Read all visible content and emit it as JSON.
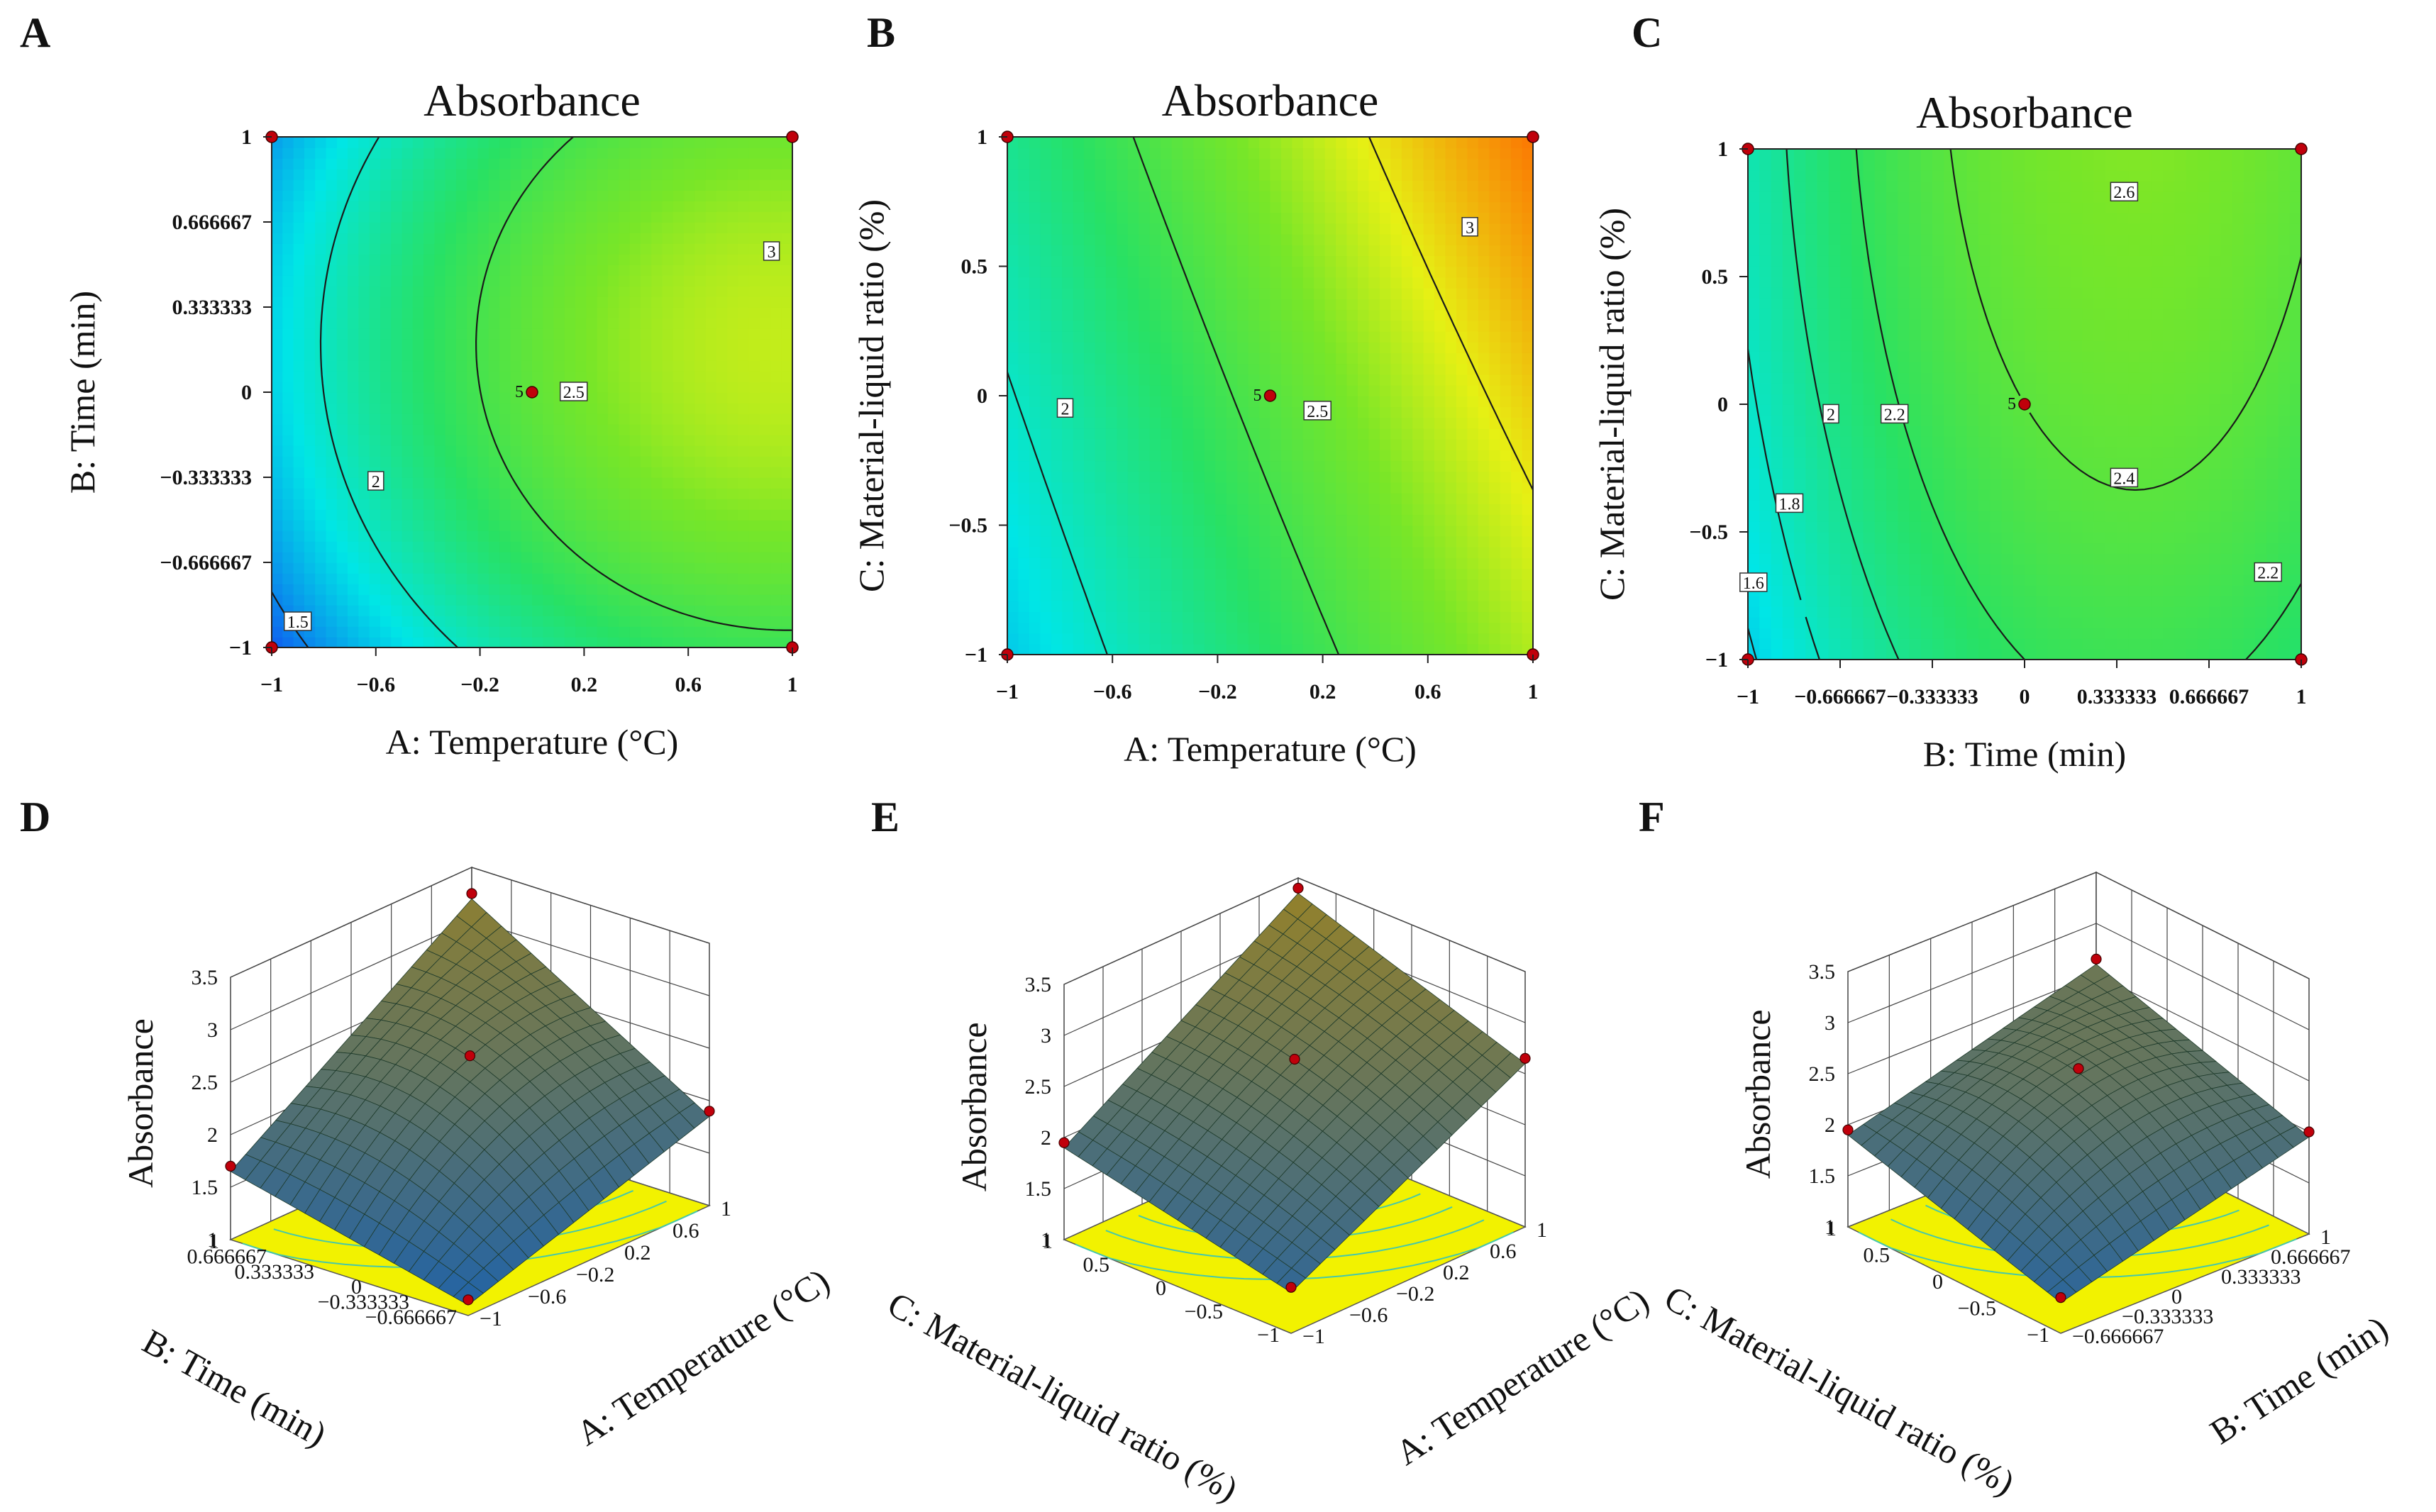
{
  "colors": {
    "low": "#1060f0",
    "mid": "#26e56b",
    "high": "#ff7a00",
    "contour_line": "#1a1a1a",
    "point": "#c0000b",
    "floor": "#f2f200",
    "floor_contour": "#45c8aa",
    "grid": "#444444"
  },
  "chart_data": [
    {
      "id": "A",
      "panel_label": "A",
      "type": "contour",
      "title": "Absorbance",
      "xlabel": "A: Temperature (°C)",
      "ylabel": "B: Time (min)",
      "xlim": [
        -1,
        1
      ],
      "ylim": [
        -1,
        1
      ],
      "xticks": [
        "−1",
        "−0.6",
        "−0.2",
        "0.2",
        "0.6",
        "1"
      ],
      "yticks": [
        "−1",
        "−0.666667",
        "−0.333333",
        "0",
        "0.333333",
        "0.666667",
        "1"
      ],
      "contour_labels": [
        {
          "text": "1.5",
          "x": -0.9,
          "y": -0.9
        },
        {
          "text": "2",
          "x": -0.6,
          "y": -0.35
        },
        {
          "text": "2.5",
          "x": 0.16,
          "y": 0.0
        },
        {
          "text": "3",
          "x": 0.92,
          "y": 0.55
        }
      ],
      "center_label": "5",
      "design_points": [
        [
          -1,
          1
        ],
        [
          1,
          1
        ],
        [
          -1,
          -1
        ],
        [
          1,
          -1
        ],
        [
          0,
          0
        ]
      ]
    },
    {
      "id": "B",
      "panel_label": "B",
      "type": "contour",
      "title": "Absorbance",
      "xlabel": "A: Temperature (°C)",
      "ylabel": "C: Material-liquid ratio (%)",
      "xlim": [
        -1,
        1
      ],
      "ylim": [
        -1,
        1
      ],
      "xticks": [
        "−1",
        "−0.6",
        "−0.2",
        "0.2",
        "0.6",
        "1"
      ],
      "yticks": [
        "−1",
        "−0.5",
        "0",
        "0.5",
        "1"
      ],
      "contour_labels": [
        {
          "text": "2",
          "x": -0.78,
          "y": -0.05
        },
        {
          "text": "2.5",
          "x": 0.18,
          "y": -0.06
        },
        {
          "text": "3",
          "x": 0.76,
          "y": 0.65
        }
      ],
      "center_label": "5",
      "design_points": [
        [
          -1,
          1
        ],
        [
          1,
          1
        ],
        [
          -1,
          -1
        ],
        [
          1,
          -1
        ],
        [
          0,
          0
        ]
      ]
    },
    {
      "id": "C",
      "panel_label": "C",
      "type": "contour",
      "title": "Absorbance",
      "xlabel": "B: Time (min)",
      "ylabel": "C: Material-liquid ratio (%)",
      "xlim": [
        -1,
        1
      ],
      "ylim": [
        -1,
        1
      ],
      "xticks": [
        "−1",
        "−0.666667",
        "−0.333333",
        "0",
        "0.333333",
        "0.666667",
        "1"
      ],
      "yticks": [
        "−1",
        "−0.5",
        "0",
        "0.5",
        "1"
      ],
      "contour_labels": [
        {
          "text": "1.6",
          "x": -0.98,
          "y": -0.7
        },
        {
          "text": "1.8",
          "x": -0.85,
          "y": -0.39
        },
        {
          "text": "2",
          "x": -0.7,
          "y": -0.04
        },
        {
          "text": "2.2",
          "x": -0.47,
          "y": -0.04
        },
        {
          "text": "2.4",
          "x": 0.36,
          "y": -0.29
        },
        {
          "text": "2.6",
          "x": 0.36,
          "y": 0.83
        },
        {
          "text": "2.2",
          "x": 0.88,
          "y": -0.66
        }
      ],
      "center_label": "5",
      "design_points": [
        [
          -1,
          1
        ],
        [
          1,
          1
        ],
        [
          -1,
          -1
        ],
        [
          1,
          -1
        ],
        [
          0,
          0
        ]
      ]
    },
    {
      "id": "D",
      "panel_label": "D",
      "type": "surface3d",
      "zlabel": "Absorbance",
      "zticks": [
        "1",
        "1.5",
        "2",
        "2.5",
        "3",
        "3.5"
      ],
      "zlim": [
        1,
        3.5
      ],
      "left_axis_label": "B: Time (min)",
      "left_ticks": [
        "−0.666667",
        "−0.333333",
        "0",
        "0.333333",
        "0.666667",
        "1"
      ],
      "right_axis_label": "A: Temperature (°C)",
      "right_ticks": [
        "−1",
        "−0.6",
        "−0.2",
        "0.2",
        "0.6",
        "1"
      ],
      "corner_values": {
        "back": 3.2,
        "left": 1.65,
        "right": 1.85,
        "front": 1.1
      },
      "center_value": 2.6
    },
    {
      "id": "E",
      "panel_label": "E",
      "type": "surface3d",
      "zlabel": "Absorbance",
      "zticks": [
        "1",
        "1.5",
        "2",
        "2.5",
        "3",
        "3.5"
      ],
      "zlim": [
        1,
        3.5
      ],
      "left_axis_label": "C: Material-liquid ratio (%)",
      "left_ticks": [
        "−1",
        "−0.5",
        "0",
        "0.5",
        "1"
      ],
      "right_axis_label": "A: Temperature (°C)",
      "right_ticks": [
        "−1",
        "−0.6",
        "−0.2",
        "0.2",
        "0.6",
        "1"
      ],
      "corner_values": {
        "back": 3.35,
        "left": 1.9,
        "right": 2.6,
        "front": 1.4
      },
      "center_value": 2.55
    },
    {
      "id": "F",
      "panel_label": "F",
      "type": "surface3d",
      "zlabel": "Absorbance",
      "zticks": [
        "1",
        "1.5",
        "2",
        "2.5",
        "3",
        "3.5"
      ],
      "zlim": [
        1,
        3.5
      ],
      "left_axis_label": "C: Material-liquid ratio (%)",
      "left_ticks": [
        "−1",
        "−0.5",
        "0",
        "0.5",
        "1"
      ],
      "right_axis_label": "B: Time (min)",
      "right_ticks": [
        "−0.666667",
        "−0.333333",
        "0",
        "0.333333",
        "0.666667",
        "1"
      ],
      "corner_values": {
        "back": 2.6,
        "left": 1.9,
        "right": 1.95,
        "front": 1.3
      },
      "center_value": 2.6
    }
  ]
}
